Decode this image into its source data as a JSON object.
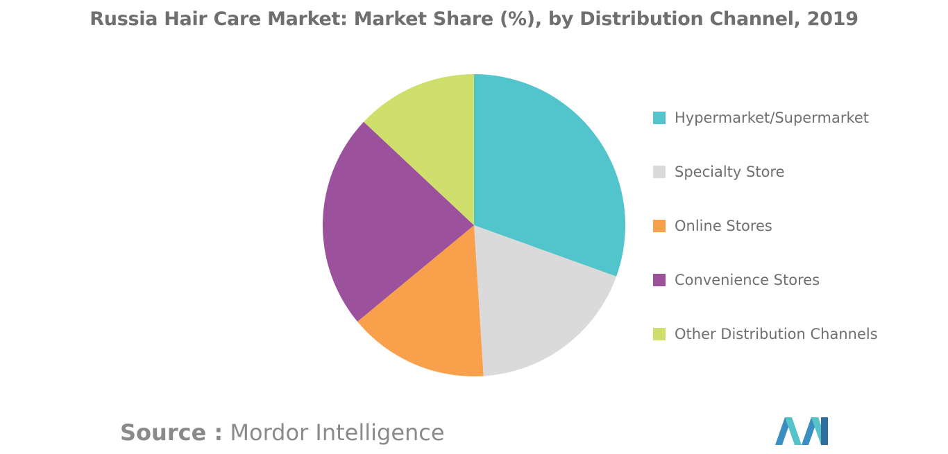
{
  "chart_data": {
    "type": "pie",
    "title": "Russia Hair Care Market: Market Share (%), by Distribution Channel, 2019",
    "categories": [
      "Hypermarket/Supermarket",
      "Specialty Store",
      "Online Stores",
      "Convenience Stores",
      "Other Distribution Channels"
    ],
    "values": [
      30.5,
      18.5,
      15.0,
      23.0,
      13.0
    ],
    "colors": [
      "#52c4cb",
      "#dadada",
      "#f9a04d",
      "#9c519c",
      "#cfdf6b"
    ],
    "legend_position": "right"
  },
  "source": {
    "label": "Source :",
    "name": "Mordor Intelligence"
  },
  "logo": {
    "icon": "mordor-intelligence-logo"
  }
}
